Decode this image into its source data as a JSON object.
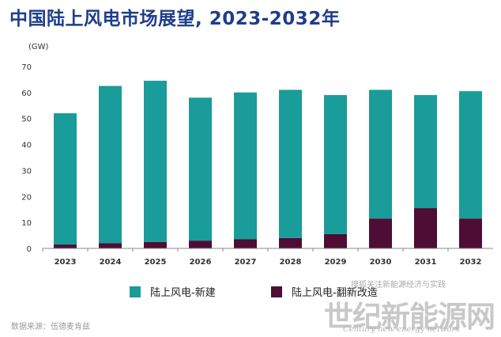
{
  "title": "中国陆上风电市场展望, 2023-2032年",
  "source": "数据来源：伍德麦肯兹",
  "watermark": {
    "line1": "搜狐关注新能源经济与实践",
    "line2": "世纪新能源网",
    "line3": "Century new energy network"
  },
  "colors": {
    "new_build": "#1a9c9a",
    "repower": "#4e0d34",
    "title": "#1f3d8c"
  },
  "chart_data": {
    "type": "bar",
    "stacked": true,
    "unit_label": "(GW)",
    "categories": [
      "2023",
      "2024",
      "2025",
      "2026",
      "2027",
      "2028",
      "2029",
      "2030",
      "2031",
      "2032"
    ],
    "series": [
      {
        "name": "陆上风电-翻新改造",
        "values": [
          1.5,
          2,
          2.5,
          3,
          3.5,
          4,
          5.5,
          11.5,
          15.5,
          11.5
        ]
      },
      {
        "name": "陆上风电-新建",
        "values": [
          50.5,
          60.5,
          62,
          55,
          56.5,
          57,
          53.5,
          49.5,
          43.5,
          49
        ]
      }
    ],
    "ylim": [
      0,
      70
    ],
    "yticks": [
      0,
      10,
      20,
      30,
      40,
      50,
      60,
      70
    ],
    "grid": false,
    "legend_position": "bottom"
  }
}
